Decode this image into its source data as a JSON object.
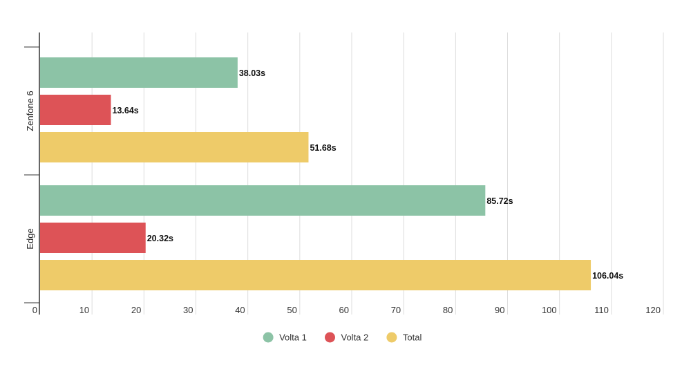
{
  "chart_data": {
    "type": "bar",
    "orientation": "horizontal",
    "categories": [
      "Zenfone 6",
      "Edge"
    ],
    "series": [
      {
        "name": "Volta 1",
        "color": "#8cc3a6",
        "values": [
          38.03,
          85.72
        ],
        "labels": [
          "38.03s",
          "85.72s"
        ]
      },
      {
        "name": "Volta 2",
        "color": "#dd5357",
        "values": [
          13.64,
          20.32
        ],
        "labels": [
          "13.64s",
          "20.32s"
        ]
      },
      {
        "name": "Total",
        "color": "#eecb69",
        "values": [
          51.68,
          106.04
        ],
        "labels": [
          "51.68s",
          "106.04s"
        ]
      }
    ],
    "xlim": [
      0,
      120
    ],
    "xticks": [
      0,
      10,
      20,
      30,
      40,
      50,
      60,
      70,
      80,
      90,
      100,
      110,
      120
    ],
    "grid": true,
    "legend_position": "bottom"
  }
}
